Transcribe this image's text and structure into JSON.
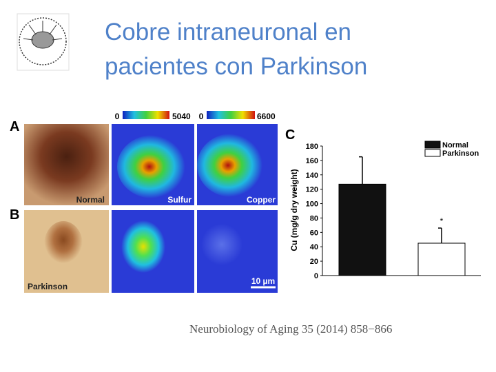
{
  "header": {
    "title_lines": [
      "Cobre intraneuronal en",
      "pacientes con Parkinson"
    ]
  },
  "figure": {
    "panel_letters": [
      "A",
      "B",
      "C"
    ],
    "image_labels": [
      "Normal",
      "Sulfur",
      "Copper",
      "Parkinson"
    ],
    "colorbars": [
      {
        "min": "0",
        "max": "5040"
      },
      {
        "min": "0",
        "max": "6600"
      }
    ],
    "scale_bar": "10 µm"
  },
  "chart_data": {
    "type": "bar",
    "ylabel": "Cu (mg/g dry weight)",
    "categories": [
      null
    ],
    "series": [
      {
        "name": "Normal",
        "color": "#111111",
        "values": [
          127
        ],
        "errors": [
          38
        ]
      },
      {
        "name": "Parkinson",
        "color": "#ffffff",
        "values": [
          45
        ],
        "errors": [
          21
        ]
      }
    ],
    "annotations": [
      "*"
    ],
    "ylim": [
      0,
      180
    ],
    "yticks": [
      0,
      20,
      40,
      60,
      80,
      100,
      120,
      140,
      160,
      180
    ]
  },
  "citation": "Neurobiology of Aging 35 (2014) 858−866"
}
